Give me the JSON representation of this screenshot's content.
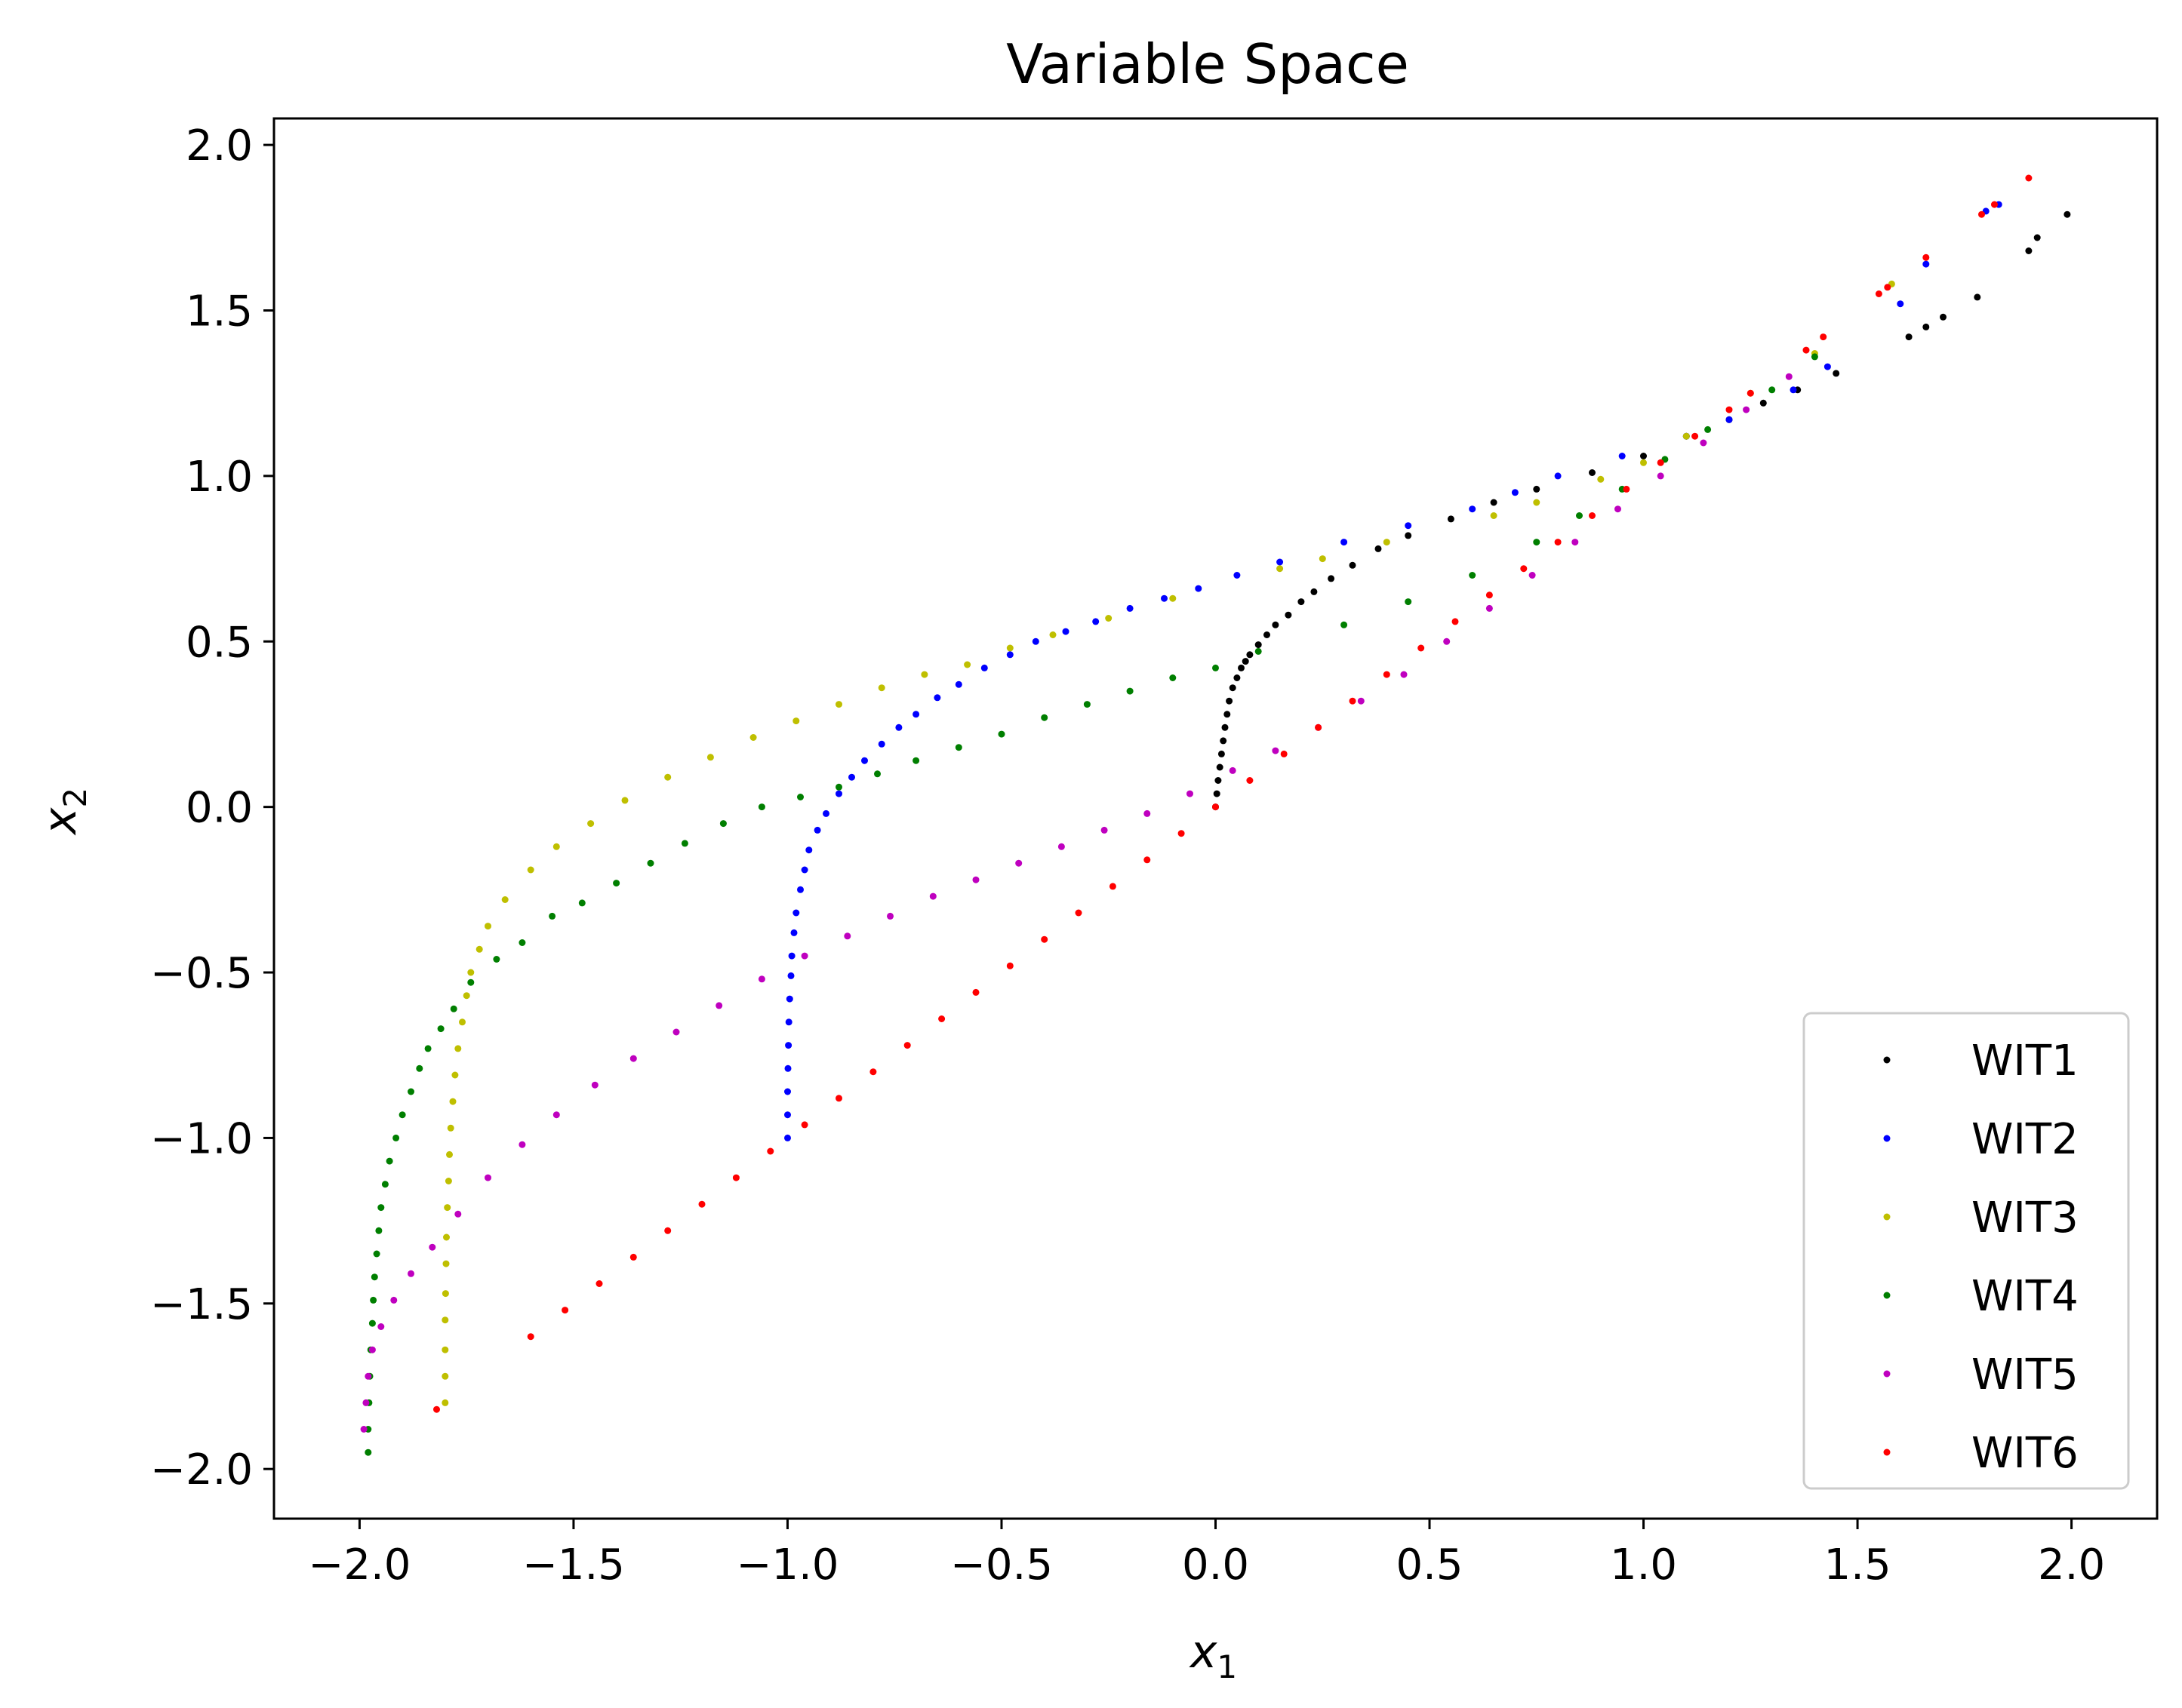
{
  "chart_data": {
    "type": "scatter",
    "title": "Variable Space",
    "xlabel": {
      "base": "x",
      "sub": "1"
    },
    "ylabel": {
      "base": "x",
      "sub": "2"
    },
    "xlim": [
      -2.2,
      2.2
    ],
    "ylim": [
      -2.15,
      2.08
    ],
    "xticks": [
      -2.0,
      -1.5,
      -1.0,
      -0.5,
      0.0,
      0.5,
      1.0,
      1.5,
      2.0
    ],
    "xtick_labels": [
      "−2.0",
      "−1.5",
      "−1.0",
      "−0.5",
      "0.0",
      "0.5",
      "1.0",
      "1.5",
      "2.0"
    ],
    "yticks": [
      -2.0,
      -1.5,
      -1.0,
      -0.5,
      0.0,
      0.5,
      1.0,
      1.5,
      2.0
    ],
    "ytick_labels": [
      "−2.0",
      "−1.5",
      "−1.0",
      "−0.5",
      "0.0",
      "0.5",
      "1.0",
      "1.5",
      "2.0"
    ],
    "grid": false,
    "legend_position": "lower right",
    "series": [
      {
        "name": "WIT1",
        "color": "#000000",
        "points": [
          [
            0.0,
            0.0
          ],
          [
            0.003,
            0.04
          ],
          [
            0.006,
            0.08
          ],
          [
            0.01,
            0.12
          ],
          [
            0.014,
            0.16
          ],
          [
            0.018,
            0.2
          ],
          [
            0.022,
            0.24
          ],
          [
            0.027,
            0.28
          ],
          [
            0.032,
            0.32
          ],
          [
            0.04,
            0.36
          ],
          [
            0.05,
            0.39
          ],
          [
            0.06,
            0.42
          ],
          [
            0.07,
            0.44
          ],
          [
            0.08,
            0.46
          ],
          [
            0.1,
            0.49
          ],
          [
            0.12,
            0.52
          ],
          [
            0.14,
            0.55
          ],
          [
            0.17,
            0.58
          ],
          [
            0.2,
            0.62
          ],
          [
            0.23,
            0.65
          ],
          [
            0.27,
            0.69
          ],
          [
            0.32,
            0.73
          ],
          [
            0.38,
            0.78
          ],
          [
            0.45,
            0.82
          ],
          [
            0.55,
            0.87
          ],
          [
            0.65,
            0.92
          ],
          [
            0.75,
            0.96
          ],
          [
            0.88,
            1.01
          ],
          [
            1.0,
            1.06
          ],
          [
            1.1,
            1.12
          ],
          [
            1.2,
            1.17
          ],
          [
            1.28,
            1.22
          ],
          [
            1.36,
            1.26
          ],
          [
            1.45,
            1.31
          ],
          [
            1.62,
            1.42
          ],
          [
            1.66,
            1.45
          ],
          [
            1.7,
            1.48
          ],
          [
            1.78,
            1.54
          ],
          [
            1.9,
            1.68
          ],
          [
            1.92,
            1.72
          ],
          [
            1.99,
            1.79
          ]
        ]
      },
      {
        "name": "WIT2",
        "color": "#0000ff",
        "points": [
          [
            -1.0,
            -1.0
          ],
          [
            -1.0,
            -0.93
          ],
          [
            -1.0,
            -0.86
          ],
          [
            -0.999,
            -0.79
          ],
          [
            -0.998,
            -0.72
          ],
          [
            -0.997,
            -0.65
          ],
          [
            -0.995,
            -0.58
          ],
          [
            -0.992,
            -0.51
          ],
          [
            -0.99,
            -0.45
          ],
          [
            -0.985,
            -0.38
          ],
          [
            -0.98,
            -0.32
          ],
          [
            -0.97,
            -0.25
          ],
          [
            -0.96,
            -0.19
          ],
          [
            -0.95,
            -0.13
          ],
          [
            -0.93,
            -0.07
          ],
          [
            -0.91,
            -0.02
          ],
          [
            -0.88,
            0.04
          ],
          [
            -0.85,
            0.09
          ],
          [
            -0.82,
            0.14
          ],
          [
            -0.78,
            0.19
          ],
          [
            -0.74,
            0.24
          ],
          [
            -0.7,
            0.28
          ],
          [
            -0.65,
            0.33
          ],
          [
            -0.6,
            0.37
          ],
          [
            -0.54,
            0.42
          ],
          [
            -0.48,
            0.46
          ],
          [
            -0.42,
            0.5
          ],
          [
            -0.35,
            0.53
          ],
          [
            -0.28,
            0.56
          ],
          [
            -0.2,
            0.6
          ],
          [
            -0.12,
            0.63
          ],
          [
            -0.04,
            0.66
          ],
          [
            0.05,
            0.7
          ],
          [
            0.15,
            0.74
          ],
          [
            0.3,
            0.8
          ],
          [
            0.45,
            0.85
          ],
          [
            0.6,
            0.9
          ],
          [
            0.7,
            0.95
          ],
          [
            0.8,
            1.0
          ],
          [
            0.95,
            1.06
          ],
          [
            1.1,
            1.12
          ],
          [
            1.2,
            1.17
          ],
          [
            1.35,
            1.26
          ],
          [
            1.43,
            1.33
          ],
          [
            1.6,
            1.52
          ],
          [
            1.66,
            1.64
          ],
          [
            1.8,
            1.8
          ],
          [
            1.83,
            1.82
          ]
        ]
      },
      {
        "name": "WIT3",
        "color": "#bfbf00",
        "points": [
          [
            -1.8,
            -1.8
          ],
          [
            -1.8,
            -1.72
          ],
          [
            -1.8,
            -1.64
          ],
          [
            -1.8,
            -1.55
          ],
          [
            -1.799,
            -1.47
          ],
          [
            -1.798,
            -1.38
          ],
          [
            -1.797,
            -1.3
          ],
          [
            -1.795,
            -1.21
          ],
          [
            -1.792,
            -1.13
          ],
          [
            -1.79,
            -1.05
          ],
          [
            -1.787,
            -0.97
          ],
          [
            -1.782,
            -0.89
          ],
          [
            -1.777,
            -0.81
          ],
          [
            -1.77,
            -0.73
          ],
          [
            -1.76,
            -0.65
          ],
          [
            -1.75,
            -0.57
          ],
          [
            -1.74,
            -0.5
          ],
          [
            -1.72,
            -0.43
          ],
          [
            -1.7,
            -0.36
          ],
          [
            -1.66,
            -0.28
          ],
          [
            -1.6,
            -0.19
          ],
          [
            -1.54,
            -0.12
          ],
          [
            -1.46,
            -0.05
          ],
          [
            -1.38,
            0.02
          ],
          [
            -1.28,
            0.09
          ],
          [
            -1.18,
            0.15
          ],
          [
            -1.08,
            0.21
          ],
          [
            -0.98,
            0.26
          ],
          [
            -0.88,
            0.31
          ],
          [
            -0.78,
            0.36
          ],
          [
            -0.68,
            0.4
          ],
          [
            -0.58,
            0.43
          ],
          [
            -0.48,
            0.48
          ],
          [
            -0.38,
            0.52
          ],
          [
            -0.25,
            0.57
          ],
          [
            -0.1,
            0.63
          ],
          [
            0.15,
            0.72
          ],
          [
            0.25,
            0.75
          ],
          [
            0.4,
            0.8
          ],
          [
            0.65,
            0.88
          ],
          [
            0.75,
            0.92
          ],
          [
            0.9,
            0.99
          ],
          [
            1.0,
            1.04
          ],
          [
            1.1,
            1.12
          ],
          [
            1.25,
            1.25
          ],
          [
            1.4,
            1.37
          ],
          [
            1.58,
            1.58
          ]
        ]
      },
      {
        "name": "WIT4",
        "color": "#007f00",
        "points": [
          [
            -1.98,
            -1.95
          ],
          [
            -1.98,
            -1.88
          ],
          [
            -1.978,
            -1.8
          ],
          [
            -1.976,
            -1.72
          ],
          [
            -1.974,
            -1.64
          ],
          [
            -1.97,
            -1.56
          ],
          [
            -1.968,
            -1.49
          ],
          [
            -1.965,
            -1.42
          ],
          [
            -1.96,
            -1.35
          ],
          [
            -1.955,
            -1.28
          ],
          [
            -1.95,
            -1.21
          ],
          [
            -1.94,
            -1.14
          ],
          [
            -1.93,
            -1.07
          ],
          [
            -1.915,
            -1.0
          ],
          [
            -1.9,
            -0.93
          ],
          [
            -1.88,
            -0.86
          ],
          [
            -1.86,
            -0.79
          ],
          [
            -1.84,
            -0.73
          ],
          [
            -1.81,
            -0.67
          ],
          [
            -1.78,
            -0.61
          ],
          [
            -1.74,
            -0.53
          ],
          [
            -1.68,
            -0.46
          ],
          [
            -1.62,
            -0.41
          ],
          [
            -1.55,
            -0.33
          ],
          [
            -1.48,
            -0.29
          ],
          [
            -1.4,
            -0.23
          ],
          [
            -1.32,
            -0.17
          ],
          [
            -1.24,
            -0.11
          ],
          [
            -1.15,
            -0.05
          ],
          [
            -1.06,
            0.0
          ],
          [
            -0.97,
            0.03
          ],
          [
            -0.88,
            0.06
          ],
          [
            -0.79,
            0.1
          ],
          [
            -0.7,
            0.14
          ],
          [
            -0.6,
            0.18
          ],
          [
            -0.5,
            0.22
          ],
          [
            -0.4,
            0.27
          ],
          [
            -0.3,
            0.31
          ],
          [
            -0.2,
            0.35
          ],
          [
            -0.1,
            0.39
          ],
          [
            0.0,
            0.42
          ],
          [
            0.1,
            0.47
          ],
          [
            0.3,
            0.55
          ],
          [
            0.45,
            0.62
          ],
          [
            0.6,
            0.7
          ],
          [
            0.75,
            0.8
          ],
          [
            0.85,
            0.88
          ],
          [
            0.95,
            0.96
          ],
          [
            1.05,
            1.05
          ],
          [
            1.15,
            1.14
          ],
          [
            1.3,
            1.26
          ],
          [
            1.4,
            1.36
          ]
        ]
      },
      {
        "name": "WIT5",
        "color": "#bf00bf",
        "points": [
          [
            -1.99,
            -1.88
          ],
          [
            -1.985,
            -1.8
          ],
          [
            -1.98,
            -1.72
          ],
          [
            -1.97,
            -1.64
          ],
          [
            -1.95,
            -1.57
          ],
          [
            -1.92,
            -1.49
          ],
          [
            -1.88,
            -1.41
          ],
          [
            -1.83,
            -1.33
          ],
          [
            -1.77,
            -1.23
          ],
          [
            -1.7,
            -1.12
          ],
          [
            -1.62,
            -1.02
          ],
          [
            -1.54,
            -0.93
          ],
          [
            -1.45,
            -0.84
          ],
          [
            -1.36,
            -0.76
          ],
          [
            -1.26,
            -0.68
          ],
          [
            -1.16,
            -0.6
          ],
          [
            -1.06,
            -0.52
          ],
          [
            -0.96,
            -0.45
          ],
          [
            -0.86,
            -0.39
          ],
          [
            -0.76,
            -0.33
          ],
          [
            -0.66,
            -0.27
          ],
          [
            -0.56,
            -0.22
          ],
          [
            -0.46,
            -0.17
          ],
          [
            -0.36,
            -0.12
          ],
          [
            -0.26,
            -0.07
          ],
          [
            -0.16,
            -0.02
          ],
          [
            -0.06,
            0.04
          ],
          [
            0.04,
            0.11
          ],
          [
            0.14,
            0.17
          ],
          [
            0.24,
            0.24
          ],
          [
            0.34,
            0.32
          ],
          [
            0.44,
            0.4
          ],
          [
            0.54,
            0.5
          ],
          [
            0.64,
            0.6
          ],
          [
            0.74,
            0.7
          ],
          [
            0.84,
            0.8
          ],
          [
            0.94,
            0.9
          ],
          [
            1.04,
            1.0
          ],
          [
            1.14,
            1.1
          ],
          [
            1.24,
            1.2
          ],
          [
            1.34,
            1.3
          ]
        ]
      },
      {
        "name": "WIT6",
        "color": "#ff0000",
        "points": [
          [
            -1.82,
            -1.82
          ],
          [
            -1.6,
            -1.6
          ],
          [
            -1.52,
            -1.52
          ],
          [
            -1.44,
            -1.44
          ],
          [
            -1.36,
            -1.36
          ],
          [
            -1.28,
            -1.28
          ],
          [
            -1.2,
            -1.2
          ],
          [
            -1.12,
            -1.12
          ],
          [
            -1.04,
            -1.04
          ],
          [
            -0.96,
            -0.96
          ],
          [
            -0.88,
            -0.88
          ],
          [
            -0.8,
            -0.8
          ],
          [
            -0.72,
            -0.72
          ],
          [
            -0.64,
            -0.64
          ],
          [
            -0.56,
            -0.56
          ],
          [
            -0.48,
            -0.48
          ],
          [
            -0.4,
            -0.4
          ],
          [
            -0.32,
            -0.32
          ],
          [
            -0.24,
            -0.24
          ],
          [
            -0.16,
            -0.16
          ],
          [
            -0.08,
            -0.08
          ],
          [
            0.0,
            0.0
          ],
          [
            0.08,
            0.08
          ],
          [
            0.16,
            0.16
          ],
          [
            0.24,
            0.24
          ],
          [
            0.32,
            0.32
          ],
          [
            0.4,
            0.4
          ],
          [
            0.48,
            0.48
          ],
          [
            0.56,
            0.56
          ],
          [
            0.64,
            0.64
          ],
          [
            0.72,
            0.72
          ],
          [
            0.8,
            0.8
          ],
          [
            0.88,
            0.88
          ],
          [
            0.96,
            0.96
          ],
          [
            1.04,
            1.04
          ],
          [
            1.12,
            1.12
          ],
          [
            1.2,
            1.2
          ],
          [
            1.25,
            1.25
          ],
          [
            1.38,
            1.38
          ],
          [
            1.42,
            1.42
          ],
          [
            1.55,
            1.55
          ],
          [
            1.57,
            1.57
          ],
          [
            1.66,
            1.66
          ],
          [
            1.79,
            1.79
          ],
          [
            1.82,
            1.82
          ],
          [
            1.9,
            1.9
          ]
        ]
      }
    ]
  }
}
